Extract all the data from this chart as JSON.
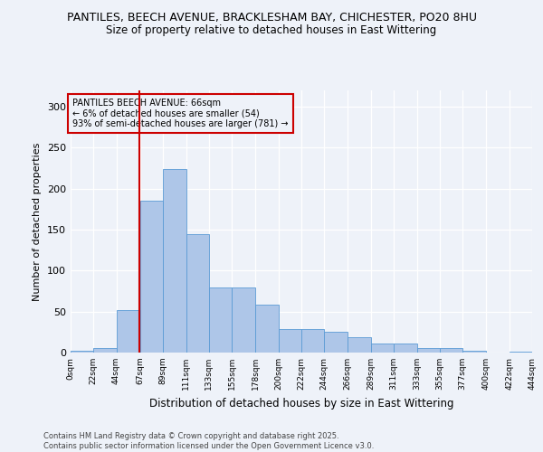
{
  "title_line1": "PANTILES, BEECH AVENUE, BRACKLESHAM BAY, CHICHESTER, PO20 8HU",
  "title_line2": "Size of property relative to detached houses in East Wittering",
  "xlabel": "Distribution of detached houses by size in East Wittering",
  "ylabel": "Number of detached properties",
  "property_size": 66,
  "property_label": "PANTILES BEECH AVENUE: 66sqm",
  "annotation_line2": "← 6% of detached houses are smaller (54)",
  "annotation_line3": "93% of semi-detached houses are larger (781) →",
  "bar_color": "#aec6e8",
  "bar_edge_color": "#5b9bd5",
  "vline_color": "#cc0000",
  "annotation_box_color": "#cc0000",
  "background_color": "#eef2f9",
  "bin_edges": [
    0,
    22,
    44,
    67,
    89,
    111,
    133,
    155,
    178,
    200,
    222,
    244,
    266,
    289,
    311,
    333,
    355,
    377,
    400,
    422,
    444
  ],
  "bin_values": [
    2,
    6,
    52,
    185,
    224,
    145,
    79,
    79,
    58,
    29,
    29,
    25,
    19,
    11,
    11,
    6,
    6,
    2,
    0,
    1,
    1
  ],
  "ylim": [
    0,
    320
  ],
  "yticks": [
    0,
    50,
    100,
    150,
    200,
    250,
    300
  ],
  "footer_line1": "Contains HM Land Registry data © Crown copyright and database right 2025.",
  "footer_line2": "Contains public sector information licensed under the Open Government Licence v3.0.",
  "tick_labels": [
    "0sqm",
    "22sqm",
    "44sqm",
    "67sqm",
    "89sqm",
    "111sqm",
    "133sqm",
    "155sqm",
    "178sqm",
    "200sqm",
    "222sqm",
    "244sqm",
    "266sqm",
    "289sqm",
    "311sqm",
    "333sqm",
    "355sqm",
    "377sqm",
    "400sqm",
    "422sqm",
    "444sqm"
  ]
}
